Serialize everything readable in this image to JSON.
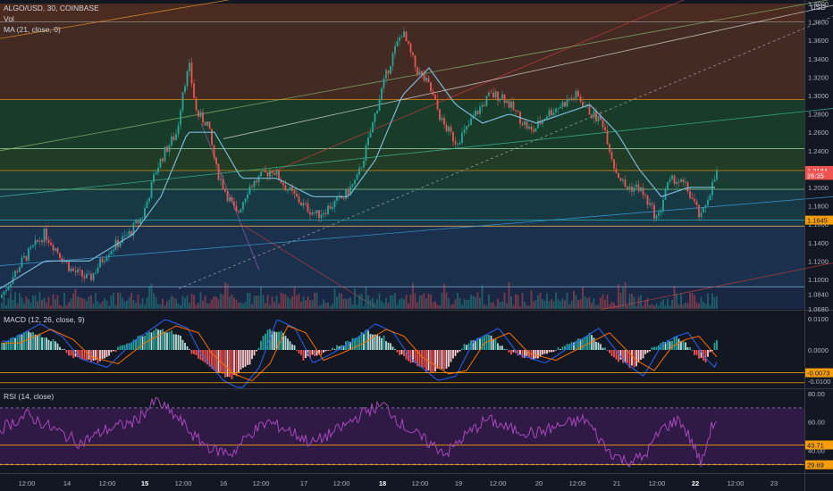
{
  "symbol_line": "ALGO/USD, 30, COINBASE",
  "vol_label": "Vol",
  "ma_label": "MA (21, close, 0)",
  "macd_label": "MACD (12, 26, close, 9)",
  "rsi_label": "RSI (14, close)",
  "currency": "USD",
  "price_panel": {
    "ylim": [
      1.068,
      1.4
    ],
    "ticks": [
      "1.4000",
      "1.3800",
      "1.3600",
      "1.3400",
      "1.3200",
      "1.3000",
      "1.2800",
      "1.2600",
      "1.2400",
      "1.2200",
      "1.2000",
      "1.1800",
      "1.1600",
      "1.1400",
      "1.1200",
      "1.1000",
      "1.0840",
      "1.0680"
    ],
    "tick_values": [
      1.4,
      1.38,
      1.36,
      1.34,
      1.32,
      1.3,
      1.28,
      1.26,
      1.24,
      1.22,
      1.2,
      1.18,
      1.16,
      1.14,
      1.12,
      1.1,
      1.084,
      1.068
    ],
    "badges": [
      {
        "text": "1.2185",
        "value": 1.2185,
        "color": "#f59d0a",
        "text_color": "#131722"
      },
      {
        "text": "1.2184",
        "value": 1.2184,
        "color": "#ef5350",
        "text_color": "#ffffff"
      },
      {
        "text": "26:35",
        "value": 1.2132,
        "color": "#ef5350",
        "text_color": "#ffffff"
      },
      {
        "text": "1.1645",
        "value": 1.1645,
        "color": "#f59d0a",
        "text_color": "#131722"
      }
    ],
    "fib_levels": [
      1.38,
      1.2955,
      1.2422,
      1.2185,
      1.198,
      1.1645,
      1.158,
      1.092
    ],
    "zones": [
      {
        "from": 1.38,
        "to": 1.4,
        "color": "#7a3b1f"
      },
      {
        "from": 1.2955,
        "to": 1.38,
        "color": "#6b3a22"
      },
      {
        "from": 1.2422,
        "to": 1.2955,
        "color": "#1f5a2f"
      },
      {
        "from": 1.2185,
        "to": 1.2422,
        "color": "#2f5a26"
      },
      {
        "from": 1.198,
        "to": 1.2185,
        "color": "#1f5a3f"
      },
      {
        "from": 1.1645,
        "to": 1.198,
        "color": "#1a5560"
      },
      {
        "from": 1.158,
        "to": 1.1645,
        "color": "#1f5266"
      },
      {
        "from": 1.092,
        "to": 1.158,
        "color": "#23466f"
      },
      {
        "from": 1.068,
        "to": 1.092,
        "color": "#1f3560"
      }
    ],
    "path_points": [
      [
        0,
        1.08
      ],
      [
        25,
        1.12
      ],
      [
        50,
        1.15
      ],
      [
        80,
        1.11
      ],
      [
        100,
        1.1
      ],
      [
        120,
        1.13
      ],
      [
        145,
        1.15
      ],
      [
        160,
        1.17
      ],
      [
        175,
        1.22
      ],
      [
        185,
        1.24
      ],
      [
        198,
        1.26
      ],
      [
        205,
        1.31
      ],
      [
        212,
        1.33
      ],
      [
        220,
        1.28
      ],
      [
        232,
        1.27
      ],
      [
        242,
        1.22
      ],
      [
        255,
        1.19
      ],
      [
        265,
        1.17
      ],
      [
        278,
        1.2
      ],
      [
        290,
        1.21
      ],
      [
        305,
        1.22
      ],
      [
        320,
        1.2
      ],
      [
        340,
        1.18
      ],
      [
        355,
        1.17
      ],
      [
        370,
        1.18
      ],
      [
        385,
        1.19
      ],
      [
        400,
        1.21
      ],
      [
        412,
        1.25
      ],
      [
        425,
        1.3
      ],
      [
        438,
        1.34
      ],
      [
        450,
        1.37
      ],
      [
        465,
        1.33
      ],
      [
        480,
        1.31
      ],
      [
        495,
        1.27
      ],
      [
        510,
        1.25
      ],
      [
        520,
        1.26
      ],
      [
        532,
        1.28
      ],
      [
        548,
        1.3
      ],
      [
        562,
        1.3
      ],
      [
        578,
        1.28
      ],
      [
        595,
        1.26
      ],
      [
        612,
        1.28
      ],
      [
        628,
        1.29
      ],
      [
        645,
        1.3
      ],
      [
        662,
        1.28
      ],
      [
        675,
        1.27
      ],
      [
        688,
        1.22
      ],
      [
        700,
        1.2
      ],
      [
        715,
        1.2
      ],
      [
        727,
        1.18
      ],
      [
        736,
        1.165
      ],
      [
        745,
        1.2
      ],
      [
        755,
        1.21
      ],
      [
        768,
        1.2
      ],
      [
        778,
        1.18
      ],
      [
        784,
        1.165
      ],
      [
        792,
        1.19
      ],
      [
        803,
        1.218
      ]
    ],
    "ma_points": [
      [
        0,
        1.09
      ],
      [
        50,
        1.12
      ],
      [
        100,
        1.12
      ],
      [
        150,
        1.15
      ],
      [
        180,
        1.19
      ],
      [
        210,
        1.26
      ],
      [
        240,
        1.26
      ],
      [
        270,
        1.21
      ],
      [
        310,
        1.21
      ],
      [
        350,
        1.19
      ],
      [
        390,
        1.19
      ],
      [
        420,
        1.23
      ],
      [
        450,
        1.3
      ],
      [
        480,
        1.33
      ],
      [
        510,
        1.29
      ],
      [
        540,
        1.27
      ],
      [
        570,
        1.28
      ],
      [
        600,
        1.27
      ],
      [
        630,
        1.28
      ],
      [
        660,
        1.29
      ],
      [
        690,
        1.26
      ],
      [
        715,
        1.22
      ],
      [
        740,
        1.19
      ],
      [
        770,
        1.2
      ],
      [
        803,
        1.2
      ]
    ],
    "trend_lines": [
      {
        "x1": 0,
        "y1": 1.362,
        "x2": 932,
        "y2": 1.515,
        "color": "#f0a030"
      },
      {
        "x1": 300,
        "y1": 1.215,
        "x2": 932,
        "y2": 1.472,
        "color": "#d04040"
      },
      {
        "x1": 0,
        "y1": 1.24,
        "x2": 932,
        "y2": 1.405,
        "color": "#88c070"
      },
      {
        "x1": 250,
        "y1": 1.253,
        "x2": 932,
        "y2": 1.398,
        "color": "#e0e0e0"
      },
      {
        "x1": 0,
        "y1": 1.19,
        "x2": 932,
        "y2": 1.286,
        "color": "#40c0a0"
      },
      {
        "x1": 200,
        "y1": 1.09,
        "x2": 932,
        "y2": 1.386,
        "color": "#b0b0b0",
        "dash": true
      },
      {
        "x1": 0,
        "y1": 1.115,
        "x2": 932,
        "y2": 1.19,
        "color": "#3da0e0"
      },
      {
        "x1": 330,
        "y1": 1.0,
        "x2": 932,
        "y2": 1.118,
        "color": "#c04040"
      },
      {
        "x1": 225,
        "y1": 1.27,
        "x2": 290,
        "y2": 1.11,
        "color": "#a060c0"
      },
      {
        "x1": 270,
        "y1": 1.16,
        "x2": 420,
        "y2": 1.07,
        "color": "#c04040"
      }
    ]
  },
  "macd_panel": {
    "ylim": [
      -0.012,
      0.012
    ],
    "ticks": [
      "0.0100",
      "0.0000",
      "-0.0100"
    ],
    "tick_values": [
      0.01,
      0.0,
      -0.01
    ],
    "badge": {
      "text": "-0.0073",
      "value": -0.0073
    },
    "hist_points": [
      [
        0,
        0.002
      ],
      [
        35,
        0.006
      ],
      [
        60,
        0.003
      ],
      [
        80,
        -0.002
      ],
      [
        110,
        -0.004
      ],
      [
        140,
        0.002
      ],
      [
        175,
        0.007
      ],
      [
        200,
        0.005
      ],
      [
        215,
        -0.001
      ],
      [
        240,
        -0.007
      ],
      [
        260,
        -0.009
      ],
      [
        280,
        -0.004
      ],
      [
        300,
        0.007
      ],
      [
        320,
        0.005
      ],
      [
        340,
        -0.003
      ],
      [
        360,
        -0.001
      ],
      [
        385,
        0.002
      ],
      [
        410,
        0.006
      ],
      [
        430,
        0.004
      ],
      [
        450,
        -0.002
      ],
      [
        480,
        -0.007
      ],
      [
        500,
        -0.006
      ],
      [
        520,
        0.002
      ],
      [
        548,
        0.005
      ],
      [
        570,
        -0.001
      ],
      [
        600,
        -0.003
      ],
      [
        630,
        0.001
      ],
      [
        660,
        0.005
      ],
      [
        690,
        -0.003
      ],
      [
        710,
        -0.006
      ],
      [
        730,
        0.001
      ],
      [
        745,
        0.003
      ],
      [
        760,
        0.004
      ],
      [
        780,
        -0.002
      ],
      [
        790,
        -0.004
      ],
      [
        803,
        0.004
      ]
    ]
  },
  "rsi_panel": {
    "ylim": [
      25,
      82
    ],
    "ticks": [
      "80.00",
      "60.00",
      "40.00"
    ],
    "tick_values": [
      80,
      60,
      40
    ],
    "badges": [
      {
        "text": "43.71",
        "value": 43.71
      },
      {
        "text": "29.69",
        "value": 29.69
      }
    ],
    "band_upper": 70,
    "band_lower": 30,
    "rsi_points": [
      [
        0,
        55
      ],
      [
        30,
        65
      ],
      [
        60,
        55
      ],
      [
        90,
        45
      ],
      [
        120,
        55
      ],
      [
        150,
        60
      ],
      [
        175,
        75
      ],
      [
        200,
        62
      ],
      [
        220,
        48
      ],
      [
        240,
        40
      ],
      [
        260,
        38
      ],
      [
        280,
        52
      ],
      [
        300,
        60
      ],
      [
        320,
        55
      ],
      [
        350,
        45
      ],
      [
        380,
        55
      ],
      [
        410,
        68
      ],
      [
        430,
        72
      ],
      [
        450,
        58
      ],
      [
        480,
        45
      ],
      [
        500,
        38
      ],
      [
        520,
        50
      ],
      [
        545,
        62
      ],
      [
        570,
        55
      ],
      [
        600,
        52
      ],
      [
        630,
        58
      ],
      [
        655,
        62
      ],
      [
        680,
        40
      ],
      [
        700,
        32
      ],
      [
        720,
        35
      ],
      [
        740,
        55
      ],
      [
        760,
        62
      ],
      [
        775,
        45
      ],
      [
        785,
        30
      ],
      [
        795,
        55
      ],
      [
        803,
        63
      ]
    ]
  },
  "time_axis": {
    "labels": [
      "12:00",
      "14",
      "12:00",
      "15",
      "12:00",
      "16",
      "12:00",
      "17",
      "12:00",
      "18",
      "12:00",
      "19",
      "12:00",
      "20",
      "12:00",
      "21",
      "12:00",
      "22",
      "12:00",
      "23"
    ],
    "x_positions": [
      30,
      75,
      120,
      162,
      205,
      250,
      292,
      340,
      382,
      428,
      470,
      513,
      557,
      603,
      646,
      690,
      735,
      778,
      823,
      866
    ],
    "bold": [
      "15",
      "18",
      "22"
    ]
  },
  "colors": {
    "bg": "#131722",
    "up": "#26a69a",
    "down": "#ef5350",
    "text": "#d1d4dc",
    "axis_text": "#b2b5be",
    "ma": "#7ab8d8",
    "macd": "#2962ff",
    "signal": "#ff6d00",
    "rsi": "#9c27b0",
    "orange": "#f59d0a"
  }
}
